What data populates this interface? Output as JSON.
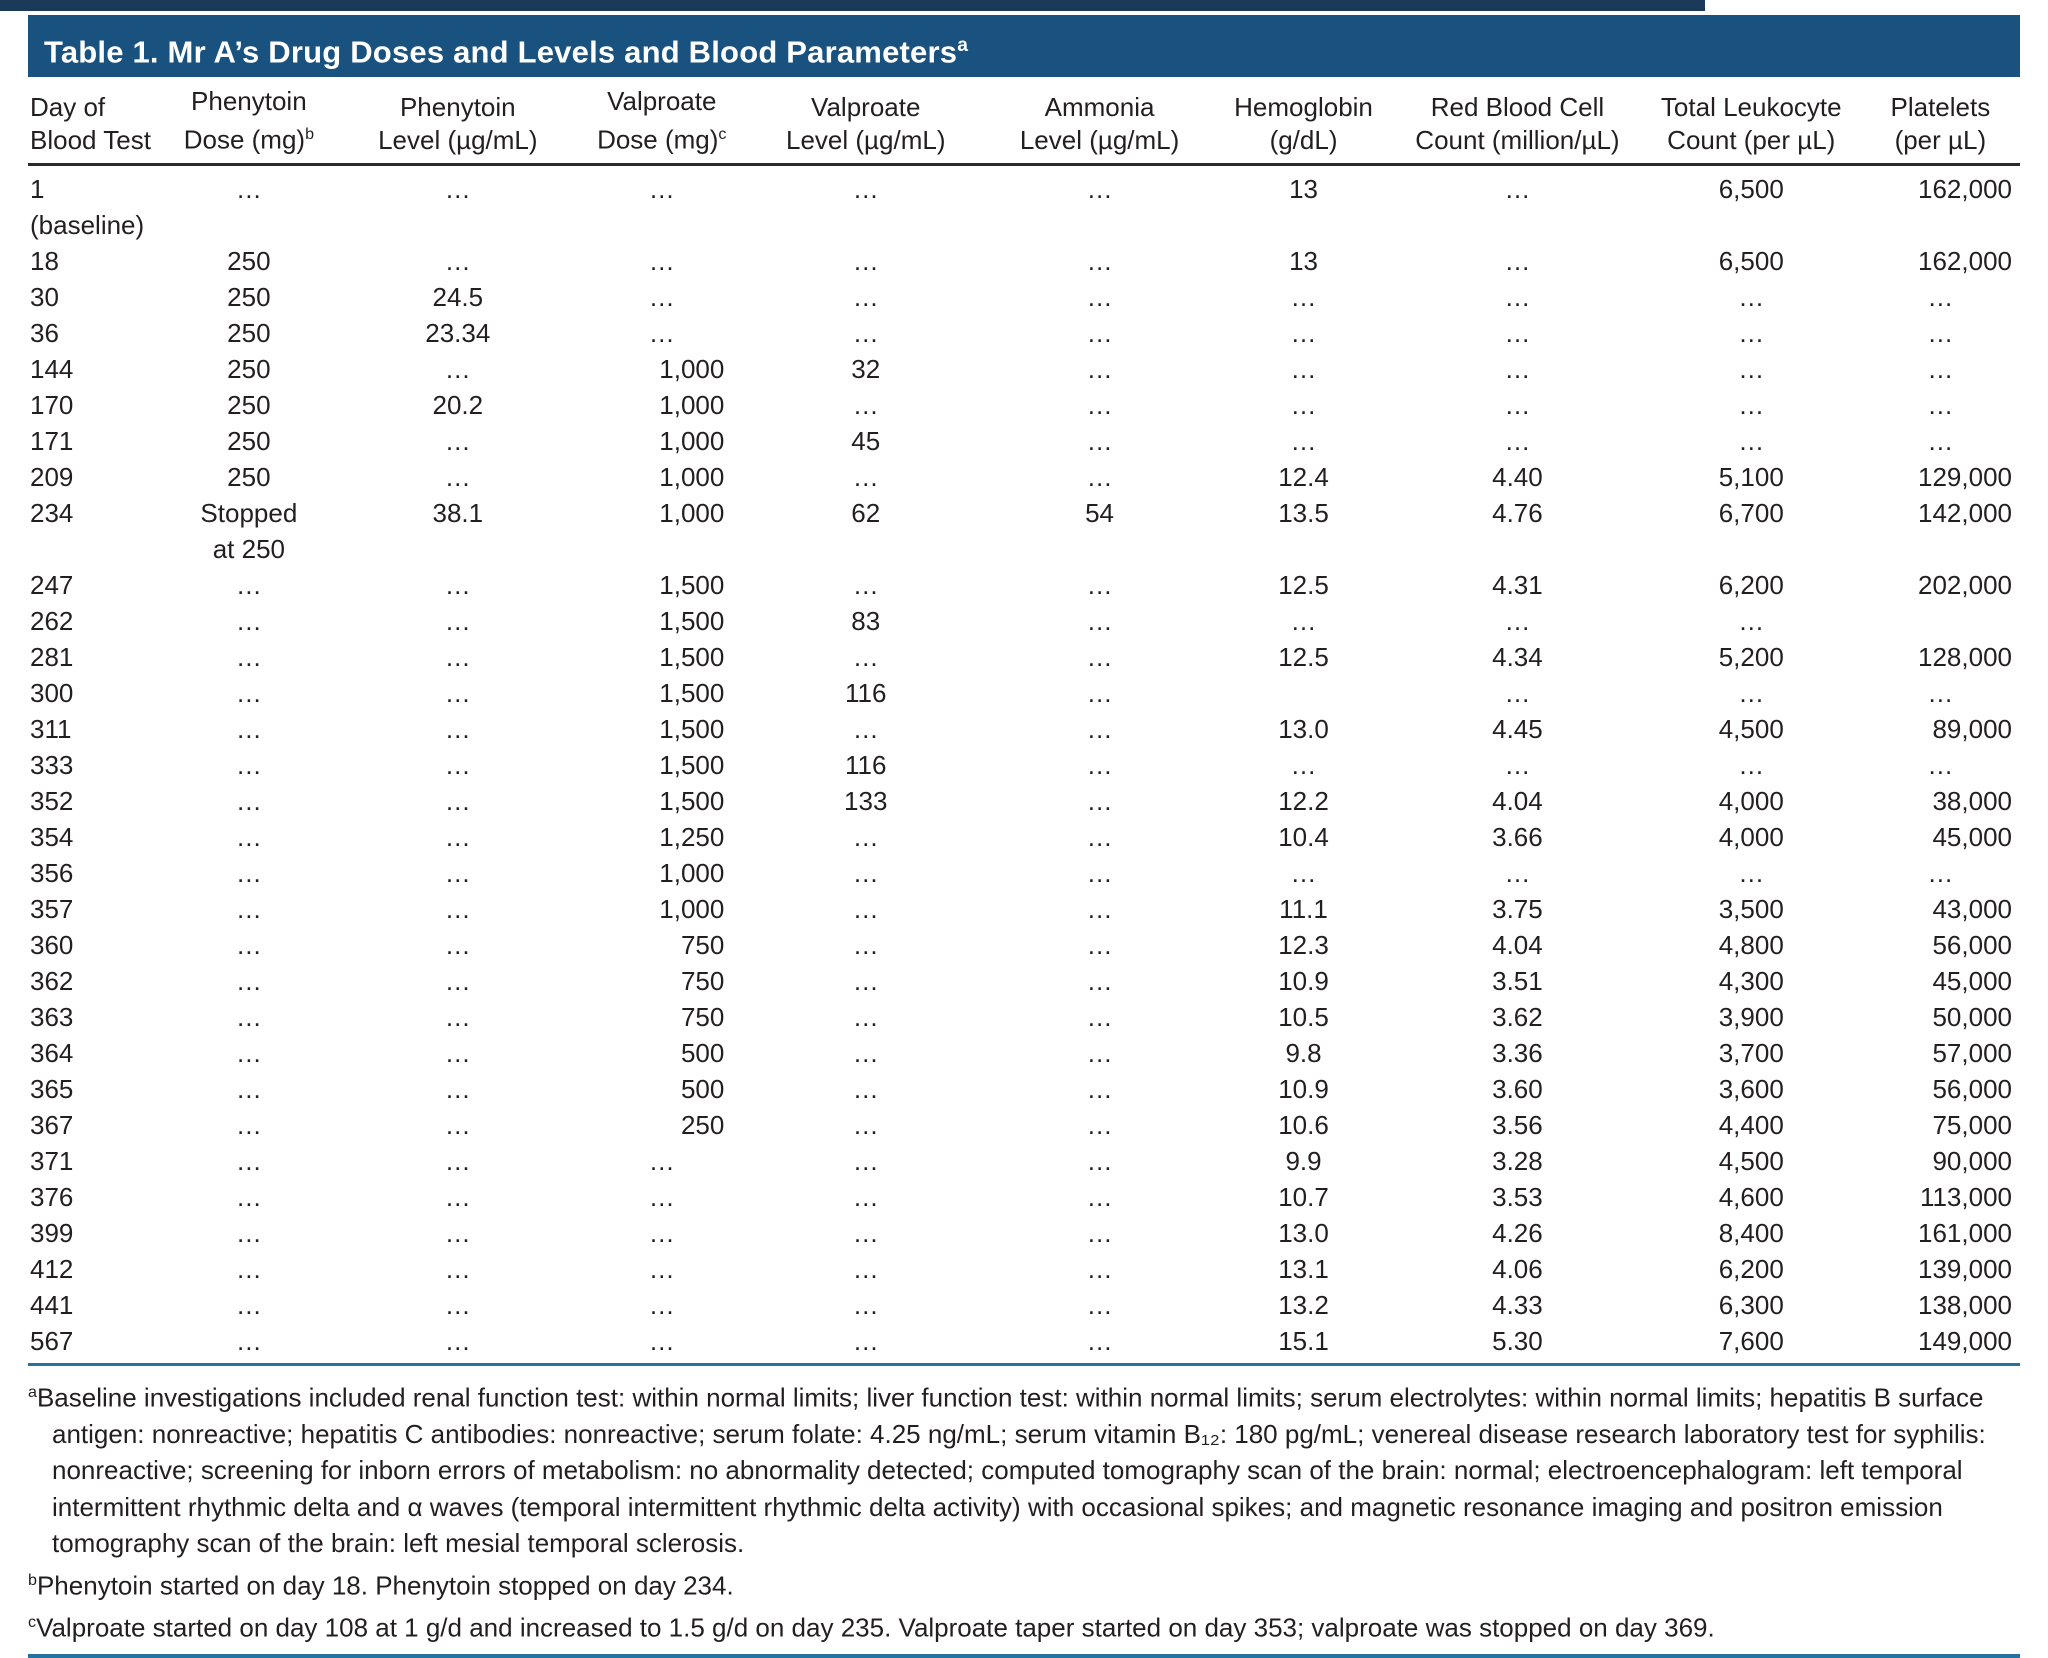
{
  "title": {
    "text": "Table 1. Mr A’s Drug Doses and Levels and Blood Parameters",
    "sup": "a"
  },
  "colors": {
    "title_bar_background": "#1a527f",
    "title_text": "#ffffff",
    "rule_blue": "#2273a2",
    "header_rule": "#2b2b2b",
    "top_strip": "#1b3a59",
    "body_text": "#231f20"
  },
  "table": {
    "columns": [
      {
        "line1": "Day of",
        "line2": "Blood Test",
        "sup": ""
      },
      {
        "line1": "Phenytoin",
        "line2": "Dose (mg)",
        "sup": "b"
      },
      {
        "line1": "Phenytoin",
        "line2": "Level (µg/mL)",
        "sup": ""
      },
      {
        "line1": "Valproate",
        "line2": "Dose (mg)",
        "sup": "c"
      },
      {
        "line1": "Valproate",
        "line2": "Level (µg/mL)",
        "sup": ""
      },
      {
        "line1": "Ammonia",
        "line2": "Level (µg/mL)",
        "sup": ""
      },
      {
        "line1": "Hemoglobin",
        "line2": "(g/dL)",
        "sup": ""
      },
      {
        "line1": "Red Blood Cell",
        "line2": "Count (million/µL)",
        "sup": ""
      },
      {
        "line1": "Total Leukocyte",
        "line2": "Count (per µL)",
        "sup": ""
      },
      {
        "line1": "Platelets",
        "line2": "(per µL)",
        "sup": ""
      }
    ],
    "rows": [
      [
        "1 (baseline)",
        "…",
        "…",
        "…",
        "…",
        "…",
        "13",
        "…",
        "6,500",
        "162,000"
      ],
      [
        "18",
        "250",
        "…",
        "…",
        "…",
        "…",
        "13",
        "…",
        "6,500",
        "162,000"
      ],
      [
        "30",
        "250",
        "24.5",
        "…",
        "…",
        "…",
        "…",
        "…",
        "…",
        "…"
      ],
      [
        "36",
        "250",
        "23.34",
        "…",
        "…",
        "…",
        "…",
        "…",
        "…",
        "…"
      ],
      [
        "144",
        "250",
        "…",
        "1,000",
        "32",
        "…",
        "…",
        "…",
        "…",
        "…"
      ],
      [
        "170",
        "250",
        "20.2",
        "1,000",
        "…",
        "…",
        "…",
        "…",
        "…",
        "…"
      ],
      [
        "171",
        "250",
        "…",
        "1,000",
        "45",
        "…",
        "…",
        "…",
        "…",
        "…"
      ],
      [
        "209",
        "250",
        "…",
        "1,000",
        "…",
        "…",
        "12.4",
        "4.40",
        "5,100",
        "129,000"
      ],
      [
        "234",
        "Stopped\nat 250",
        "38.1",
        "1,000",
        "62",
        "54",
        "13.5",
        "4.76",
        "6,700",
        "142,000"
      ],
      [
        "247",
        "…",
        "…",
        "1,500",
        "…",
        "…",
        "12.5",
        "4.31",
        "6,200",
        "202,000"
      ],
      [
        "262",
        "…",
        "…",
        "1,500",
        "83",
        "…",
        "…",
        "…",
        "…",
        ""
      ],
      [
        "281",
        "…",
        "…",
        "1,500",
        "…",
        "…",
        "12.5",
        "4.34",
        "5,200",
        "128,000"
      ],
      [
        "300",
        "…",
        "…",
        "1,500",
        "116",
        "…",
        "",
        "…",
        "…",
        "…"
      ],
      [
        "311",
        "…",
        "…",
        "1,500",
        "…",
        "…",
        "13.0",
        "4.45",
        "4,500",
        "89,000"
      ],
      [
        "333",
        "…",
        "…",
        "1,500",
        "116",
        "…",
        "…",
        "…",
        "…",
        "…"
      ],
      [
        "352",
        "…",
        "…",
        "1,500",
        "133",
        "…",
        "12.2",
        "4.04",
        "4,000",
        "38,000"
      ],
      [
        "354",
        "…",
        "…",
        "1,250",
        "…",
        "…",
        "10.4",
        "3.66",
        "4,000",
        "45,000"
      ],
      [
        "356",
        "…",
        "…",
        "1,000",
        "…",
        "…",
        "…",
        "…",
        "…",
        "…"
      ],
      [
        "357",
        "…",
        "…",
        "1,000",
        "…",
        "…",
        "11.1",
        "3.75",
        "3,500",
        "43,000"
      ],
      [
        "360",
        "…",
        "…",
        "750",
        "…",
        "…",
        "12.3",
        "4.04",
        "4,800",
        "56,000"
      ],
      [
        "362",
        "…",
        "…",
        "750",
        "…",
        "…",
        "10.9",
        "3.51",
        "4,300",
        "45,000"
      ],
      [
        "363",
        "…",
        "…",
        "750",
        "…",
        "…",
        "10.5",
        "3.62",
        "3,900",
        "50,000"
      ],
      [
        "364",
        "…",
        "…",
        "500",
        "…",
        "…",
        "9.8",
        "3.36",
        "3,700",
        "57,000"
      ],
      [
        "365",
        "…",
        "…",
        "500",
        "…",
        "…",
        "10.9",
        "3.60",
        "3,600",
        "56,000"
      ],
      [
        "367",
        "…",
        "…",
        "250",
        "…",
        "…",
        "10.6",
        "3.56",
        "4,400",
        "75,000"
      ],
      [
        "371",
        "…",
        "…",
        "…",
        "…",
        "…",
        "9.9",
        "3.28",
        "4,500",
        "90,000"
      ],
      [
        "376",
        "…",
        "…",
        "…",
        "…",
        "…",
        "10.7",
        "3.53",
        "4,600",
        "113,000"
      ],
      [
        "399",
        "…",
        "…",
        "…",
        "…",
        "…",
        "13.0",
        "4.26",
        "8,400",
        "161,000"
      ],
      [
        "412",
        "…",
        "…",
        "…",
        "…",
        "…",
        "13.1",
        "4.06",
        "6,200",
        "139,000"
      ],
      [
        "441",
        "…",
        "…",
        "…",
        "…",
        "…",
        "13.2",
        "4.33",
        "6,300",
        "138,000"
      ],
      [
        "567",
        "…",
        "…",
        "…",
        "…",
        "…",
        "15.1",
        "5.30",
        "7,600",
        "149,000"
      ]
    ]
  },
  "footnotes": [
    {
      "marker": "a",
      "text": "Baseline investigations included renal function test: within normal limits; liver function test: within normal limits; serum electrolytes: within normal limits; hepatitis B surface antigen: nonreactive; hepatitis C antibodies: nonreactive; serum folate: 4.25 ng/mL; serum vitamin B₁₂: 180 pg/mL; venereal disease research laboratory test for syphilis: nonreactive; screening for inborn errors of metabolism: no abnormality detected; computed tomography scan of the brain: normal; electroencephalogram: left temporal intermittent rhythmic delta and α waves (temporal intermittent rhythmic delta activity) with occasional spikes; and magnetic resonance imaging and positron emission tomography scan of the brain: left mesial temporal sclerosis."
    },
    {
      "marker": "b",
      "text": "Phenytoin started on day 18. Phenytoin stopped on day 234."
    },
    {
      "marker": "c",
      "text": "Valproate started on day 108 at 1 g/d and increased to 1.5 g/d on day 235. Valproate taper started on day 353; valproate was stopped on day 369."
    }
  ]
}
